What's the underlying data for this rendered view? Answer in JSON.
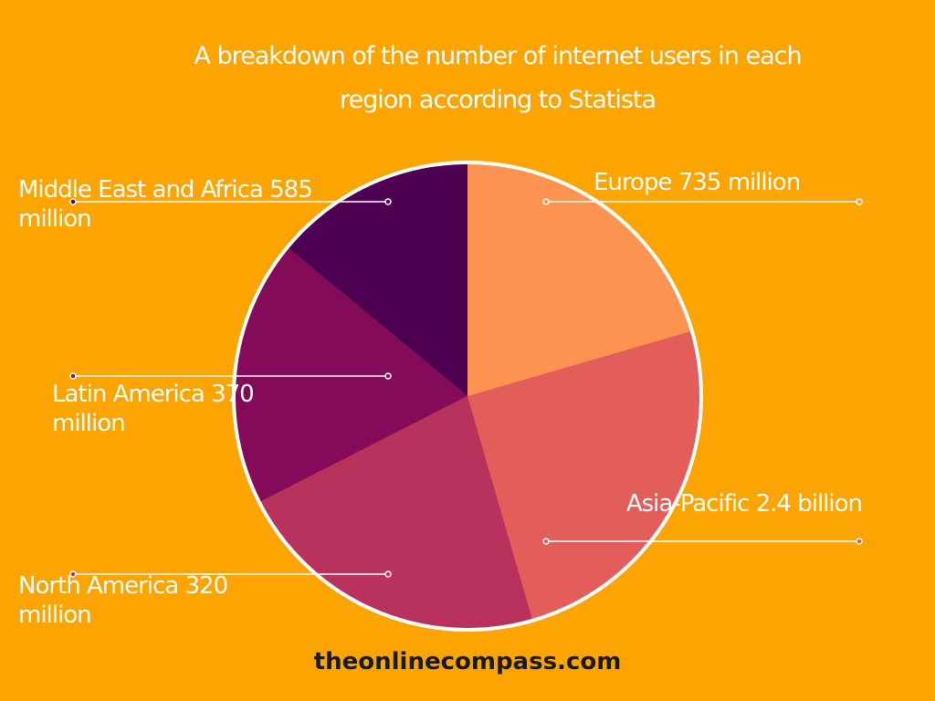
{
  "chart_data": {
    "type": "pie",
    "title_lines": [
      "A breakdown of the number of internet users in each",
      "region  according to Statista"
    ],
    "slices": [
      {
        "label_lines": [
          "Europe  735 million"
        ],
        "value": 20.5,
        "color": "#FD9350"
      },
      {
        "label_lines": [
          "Asia-Pacific  2.4 billion"
        ],
        "value": 25,
        "color": "#E35E5A"
      },
      {
        "label_lines": [
          "North America  320",
          "million"
        ],
        "value": 22,
        "color": "#B9315D"
      },
      {
        "label_lines": [
          "Latin America  370",
          "million"
        ],
        "value": 18.5,
        "color": "#830B5A"
      },
      {
        "label_lines": [
          "Middle East and Africa  585",
          "million"
        ],
        "value": 14,
        "color": "#4D0051"
      }
    ],
    "slice_border_color": "#FFFFFF",
    "leader_line_color": "#FFFFFF"
  },
  "footer": "theonlinecompass.com"
}
